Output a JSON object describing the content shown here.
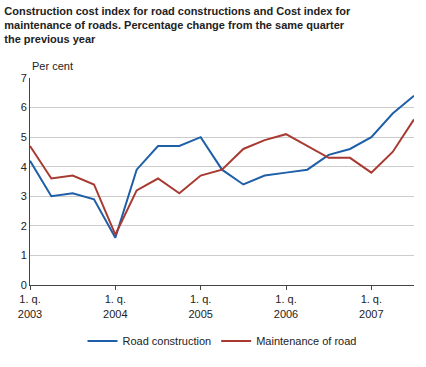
{
  "chart_data": {
    "type": "line",
    "title": "Construction cost index for road constructions and Cost index for\nmaintenance of roads. Percentage change from the same quarter\nthe previous year",
    "y_label": "Per cent",
    "categories": [
      "1. q.\n2003",
      null,
      null,
      null,
      "1. q.\n2004",
      null,
      null,
      null,
      "1. q.\n2005",
      null,
      null,
      null,
      "1. q.\n2006",
      null,
      null,
      null,
      "1. q.\n2007",
      null,
      null
    ],
    "series": [
      {
        "name": "Road construction",
        "color": "#1f5fa8",
        "values": [
          4.2,
          3.0,
          3.1,
          2.9,
          1.6,
          3.9,
          4.7,
          4.7,
          5.0,
          3.9,
          3.4,
          3.7,
          3.8,
          3.9,
          4.4,
          4.6,
          5.0,
          5.8,
          6.4
        ]
      },
      {
        "name": "Maintenance of road",
        "color": "#a83a32",
        "values": [
          4.7,
          3.6,
          3.7,
          3.4,
          1.7,
          3.2,
          3.6,
          3.1,
          3.7,
          3.9,
          4.6,
          4.9,
          5.1,
          4.7,
          4.3,
          4.3,
          3.8,
          4.5,
          5.6
        ]
      }
    ],
    "ylim": [
      0,
      7
    ],
    "yticks": [
      0,
      1,
      2,
      3,
      4,
      5,
      6,
      7
    ],
    "grid": true,
    "legend": "bottom"
  }
}
